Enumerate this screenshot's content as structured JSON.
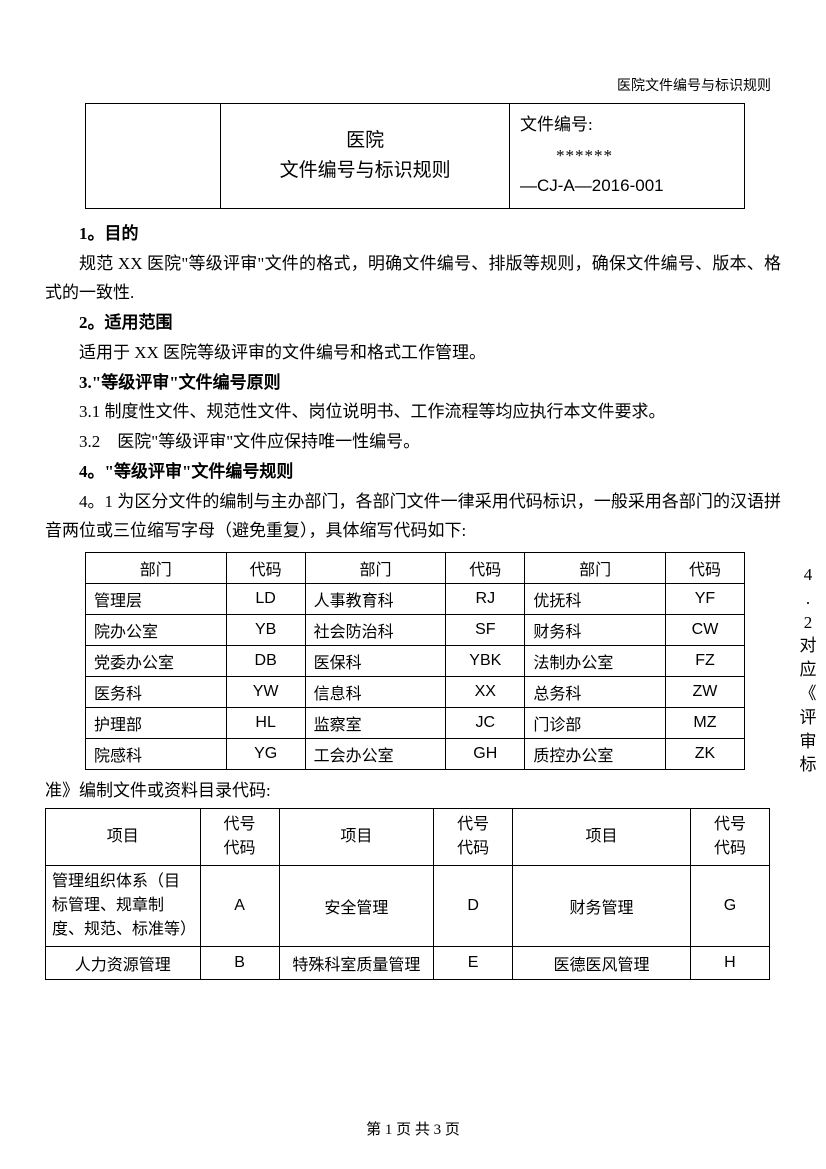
{
  "header_right": "医院文件编号与标识规则",
  "title_box": {
    "title_line1": "医院",
    "title_line2": "文件编号与标识规则",
    "docnum_label": "文件编号:",
    "docnum_stars": "******",
    "docnum_code": "—CJ-A—2016-001"
  },
  "sections": {
    "s1_heading": "1。目的",
    "s1_p1": "规范 XX 医院\"等级评审\"文件的格式，明确文件编号、排版等规则，确保文件编号、版本、格式的一致性.",
    "s2_heading": "2。适用范围",
    "s2_p1": "适用于 XX 医院等级评审的文件编号和格式工作管理。",
    "s3_heading": "3.\"等级评审\"文件编号原则",
    "s3_1": "3.1 制度性文件、规范性文件、岗位说明书、工作流程等均应执行本文件要求。",
    "s3_2": "3.2　医院\"等级评审\"文件应保持唯一性编号。",
    "s4_heading": "4。\"等级评审\"文件编号规则",
    "s4_1": "4。1 为区分文件的编制与主办部门，各部门文件一律采用代码标识，一般采用各部门的汉语拼音两位或三位缩写字母（避免重复），具体缩写代码如下:",
    "s4_2_side": "4.2 对应《评审标",
    "s4_2_cont": "准》编制文件或资料目录代码:"
  },
  "dept_table": {
    "headers": [
      "部门",
      "代码",
      "部门",
      "代码",
      "部门",
      "代码"
    ],
    "rows": [
      [
        "管理层",
        "LD",
        "人事教育科",
        "RJ",
        "优抚科",
        "YF"
      ],
      [
        "院办公室",
        "YB",
        "社会防治科",
        "SF",
        "财务科",
        "CW"
      ],
      [
        "党委办公室",
        "DB",
        "医保科",
        "YBK",
        "法制办公室",
        "FZ"
      ],
      [
        "医务科",
        "YW",
        "信息科",
        "XX",
        "总务科",
        "ZW"
      ],
      [
        "护理部",
        "HL",
        "监察室",
        "JC",
        "门诊部",
        "MZ"
      ],
      [
        "院感科",
        "YG",
        "工会办公室",
        "GH",
        "质控办公室",
        "ZK"
      ]
    ]
  },
  "proj_table": {
    "headers": [
      "项目",
      "代号代码",
      "项目",
      "代号代码",
      "项目",
      "代号代码"
    ],
    "rows": [
      [
        "管理组织体系（目标管理、规章制度、规范、标准等）",
        "A",
        "安全管理",
        "D",
        "财务管理",
        "G"
      ],
      [
        "人力资源管理",
        "B",
        "特殊科室质量管理",
        "E",
        "医德医风管理",
        "H"
      ]
    ]
  },
  "footer": "第 1 页 共 3 页"
}
